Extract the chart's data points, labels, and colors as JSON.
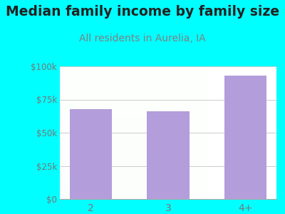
{
  "title": "Median family income by family size",
  "subtitle": "All residents in Aurelia, IA",
  "categories": [
    "2",
    "3",
    "4+"
  ],
  "values": [
    68000,
    66000,
    93000
  ],
  "bar_color": "#b39ddb",
  "background_outer": "#00ffff",
  "title_color": "#222222",
  "title_fontsize": 13.5,
  "subtitle_fontsize": 10,
  "subtitle_color": "#808080",
  "tick_label_color": "#777777",
  "tick_fontsize": 8.5,
  "xtick_fontsize": 10,
  "ylim": [
    0,
    100000
  ],
  "yticks": [
    0,
    25000,
    50000,
    75000,
    100000
  ],
  "ytick_labels": [
    "$0",
    "$25k",
    "$50k",
    "$75k",
    "$100k"
  ]
}
